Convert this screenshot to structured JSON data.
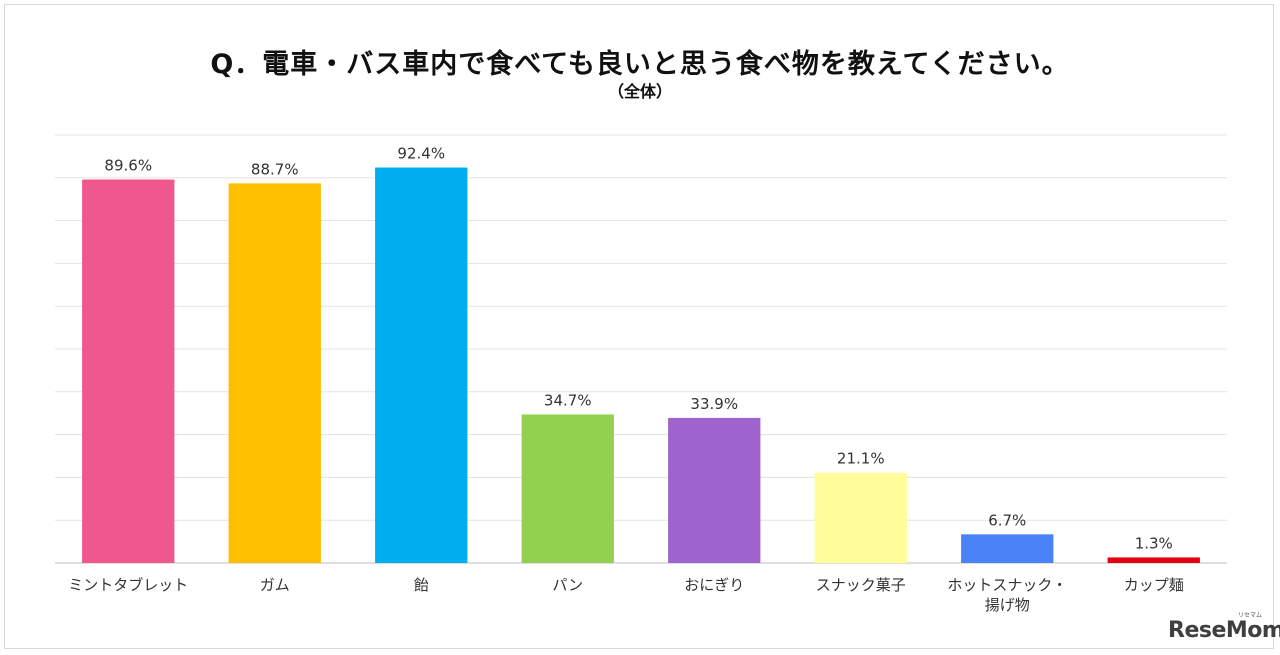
{
  "title": "Q．電車・バス車内で食べても良いと思う食べ物を教えてください。",
  "subtitle": "（全体）",
  "logo": {
    "text": "ReseMom",
    "kana": "リセマム"
  },
  "chart_data": {
    "type": "bar",
    "title": "Q．電車・バス車内で食べても良いと思う食べ物を教えてください。",
    "subtitle": "（全体）",
    "categories": [
      "ミントタブレット",
      "ガム",
      "飴",
      "パン",
      "おにぎり",
      "スナック菓子",
      "ホットスナック・揚げ物",
      "カップ麺"
    ],
    "category_label_lines": [
      [
        "ミントタブレット"
      ],
      [
        "ガム"
      ],
      [
        "飴"
      ],
      [
        "パン"
      ],
      [
        "おにぎり"
      ],
      [
        "スナック菓子"
      ],
      [
        "ホットスナック・",
        "揚げ物"
      ],
      [
        "カップ麺"
      ]
    ],
    "values": [
      89.6,
      88.7,
      92.4,
      34.7,
      33.9,
      21.1,
      6.7,
      1.3
    ],
    "value_labels": [
      "89.6%",
      "88.7%",
      "92.4%",
      "34.7%",
      "33.9%",
      "21.1%",
      "6.7%",
      "1.3%"
    ],
    "colors": [
      "#F0578C",
      "#FDBF00",
      "#00ADEE",
      "#92D050",
      "#9E63CC",
      "#FFFD9A",
      "#4A82F7",
      "#E30011"
    ],
    "ylim": [
      0,
      100
    ],
    "grid": true,
    "legend": "none",
    "xlabel": "",
    "ylabel": ""
  }
}
